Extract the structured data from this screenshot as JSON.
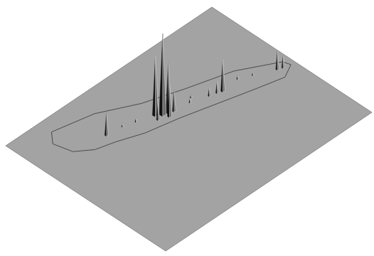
{
  "chart_data": {
    "type": "surface3d",
    "xlim": [
      0,
      100
    ],
    "ylim": [
      0,
      100
    ],
    "zlim": [
      0,
      100
    ],
    "tick_labels": false,
    "grid": false,
    "color": "#a3a3a3",
    "outline": [
      [
        16,
        8
      ],
      [
        33,
        13
      ],
      [
        48,
        23
      ],
      [
        64,
        30
      ],
      [
        82,
        37
      ],
      [
        97,
        48
      ],
      [
        98,
        52
      ],
      [
        92,
        56
      ],
      [
        80,
        52
      ],
      [
        66,
        47
      ],
      [
        52,
        42
      ],
      [
        38,
        38
      ],
      [
        28,
        33
      ],
      [
        20,
        30
      ],
      [
        14,
        24
      ],
      [
        12,
        14
      ],
      [
        16,
        8
      ]
    ],
    "x": [
      47,
      49,
      51,
      50,
      53,
      46,
      28,
      72,
      70,
      67,
      93,
      95,
      40,
      60,
      80,
      85,
      62,
      35
    ],
    "y": [
      33,
      35,
      36,
      38,
      37,
      36,
      27,
      43,
      42,
      41,
      50,
      51,
      30,
      38,
      42,
      45,
      36,
      28
    ],
    "values": [
      70,
      95,
      60,
      40,
      25,
      20,
      28,
      38,
      14,
      10,
      22,
      14,
      4,
      5,
      4,
      3,
      3,
      3
    ]
  }
}
